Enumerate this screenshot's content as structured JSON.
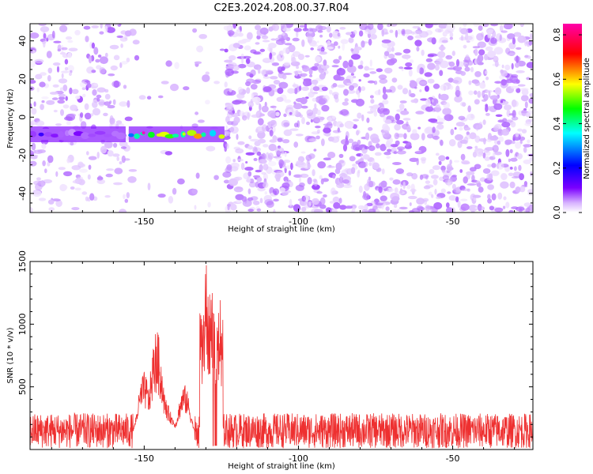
{
  "figure": {
    "title": "C2E3.2024.208.00.37.R04"
  },
  "chart_data": [
    {
      "type": "heatmap",
      "xlabel": "Height of straight line (km)",
      "ylabel": "Frequency (Hz)",
      "xlim": [
        -187,
        -24
      ],
      "ylim": [
        -50,
        49
      ],
      "xticks": [
        -150,
        -100,
        -50
      ],
      "yticks": [
        -40,
        -20,
        0,
        20,
        40
      ],
      "grid": false,
      "colorbar": {
        "label": "Normalized spectral amplitude",
        "range": [
          0.0,
          0.85
        ],
        "ticks": [
          0.0,
          0.2,
          0.4,
          0.6,
          0.8
        ],
        "colormap": [
          "#ffffff",
          "#d8b4ff",
          "#7b00ff",
          "#0000ff",
          "#00ffff",
          "#00ff00",
          "#ffff00",
          "#ff0000",
          "#ff00ff"
        ]
      },
      "signal_track": {
        "frequency_hz": -9,
        "segments": [
          {
            "x_start": -187,
            "x_end": -156,
            "peak_amplitude": 0.35
          },
          {
            "x_start": -155,
            "x_end": -124,
            "peak_amplitude": 0.85
          }
        ]
      },
      "noise": {
        "low_density_region": [
          -155,
          -124
        ],
        "background_amplitude": 0.08
      }
    },
    {
      "type": "line",
      "xlabel": "Height of straight line (km)",
      "ylabel": "SNR (10 * v/v)",
      "xlim": [
        -187,
        -24
      ],
      "ylim": [
        0,
        1500
      ],
      "xticks": [
        -150,
        -100,
        -50
      ],
      "yticks": [
        500,
        1000,
        1500
      ],
      "grid": false,
      "color": "#ee3030",
      "baseline": 150,
      "noise_amplitude": 200,
      "peaks": [
        {
          "x": -146,
          "y": 960
        },
        {
          "x": -150,
          "y": 620
        },
        {
          "x": -137,
          "y": 520
        },
        {
          "x": -130,
          "y": 1500
        },
        {
          "x": -129,
          "y": 1400
        },
        {
          "x": -126,
          "y": 1150
        }
      ]
    }
  ]
}
